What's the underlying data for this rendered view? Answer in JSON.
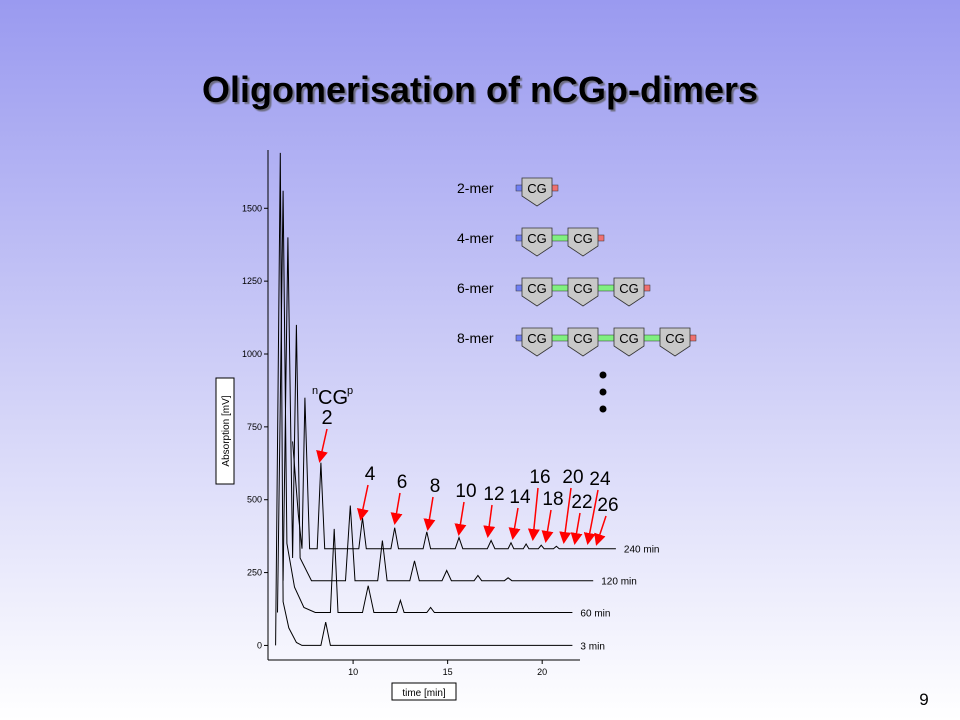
{
  "slide": {
    "title": "Oligomerisation of nCGp-dimers",
    "page_number": "9"
  },
  "chart_data": {
    "type": "line",
    "x_label": "time [min]",
    "y_label": "Absorption [mV]",
    "xlim": [
      5.5,
      22
    ],
    "ylim": [
      -50,
      1700
    ],
    "xticks": [
      10,
      15,
      20
    ],
    "yticks": [
      0,
      250,
      500,
      750,
      1000,
      1250,
      1500
    ],
    "series": [
      {
        "name": "3 min",
        "color": "#000000",
        "x": [
          5.9,
          6.15,
          6.3,
          6.6,
          7.0,
          7.3,
          8.3,
          8.55,
          8.8,
          21.6
        ],
        "values": [
          0,
          1690,
          150,
          60,
          10,
          0,
          0,
          80,
          0,
          0
        ]
      },
      {
        "name": "60 min",
        "color": "#000000",
        "x": [
          6.0,
          6.3,
          6.5,
          6.9,
          7.4,
          8.0,
          8.8,
          9.0,
          9.2,
          10.5,
          10.8,
          11.1,
          12.3,
          12.5,
          12.7,
          13.9,
          14.1,
          14.3,
          21.6
        ],
        "values": [
          113,
          1560,
          350,
          200,
          130,
          113,
          113,
          400,
          113,
          113,
          205,
          113,
          113,
          155,
          113,
          113,
          130,
          113,
          113
        ]
      },
      {
        "name": "120 min",
        "color": "#000000",
        "x": [
          6.3,
          6.55,
          6.8,
          7.0,
          7.2,
          7.8,
          9.6,
          9.85,
          10.1,
          11.3,
          11.55,
          11.8,
          13.0,
          13.25,
          13.5,
          14.7,
          14.95,
          15.2,
          16.4,
          16.6,
          16.8,
          18.0,
          18.2,
          18.4,
          22.7
        ],
        "values": [
          222,
          1400,
          300,
          1100,
          300,
          222,
          222,
          480,
          222,
          222,
          360,
          222,
          222,
          290,
          222,
          222,
          257,
          222,
          222,
          240,
          222,
          222,
          232,
          222,
          222
        ]
      },
      {
        "name": "240 min",
        "color": "#000000",
        "x": [
          6.8,
          7.1,
          7.3,
          7.45,
          7.7,
          8.1,
          8.3,
          8.5,
          10.3,
          10.5,
          10.7,
          12.0,
          12.2,
          12.4,
          13.7,
          13.9,
          14.1,
          15.4,
          15.6,
          15.8,
          17.1,
          17.3,
          17.5,
          18.2,
          18.35,
          18.5,
          19.0,
          19.15,
          19.3,
          19.8,
          19.95,
          20.1,
          20.6,
          20.75,
          20.9,
          23.9
        ],
        "values": [
          700,
          450,
          332,
          850,
          332,
          332,
          627,
          332,
          332,
          438,
          332,
          332,
          404,
          332,
          332,
          390,
          332,
          332,
          370,
          332,
          332,
          360,
          332,
          332,
          352,
          332,
          332,
          348,
          332,
          332,
          344,
          332,
          332,
          340,
          332,
          332
        ]
      }
    ],
    "annotations": {
      "dimer": {
        "prefix": "n",
        "label": "CG",
        "suffix": "p",
        "number": "2"
      },
      "peak_labels": [
        "4",
        "6",
        "8",
        "10",
        "12",
        "14",
        "16",
        "18",
        "20",
        "22",
        "24",
        "26"
      ]
    }
  },
  "diagram": {
    "oligomers": [
      {
        "label": "2-mer",
        "units": [
          "CG"
        ]
      },
      {
        "label": "4-mer",
        "units": [
          "CG",
          "CG"
        ]
      },
      {
        "label": "6-mer",
        "units": [
          "CG",
          "CG",
          "CG"
        ]
      },
      {
        "label": "8-mer",
        "units": [
          "CG",
          "CG",
          "CG",
          "CG"
        ]
      }
    ]
  }
}
